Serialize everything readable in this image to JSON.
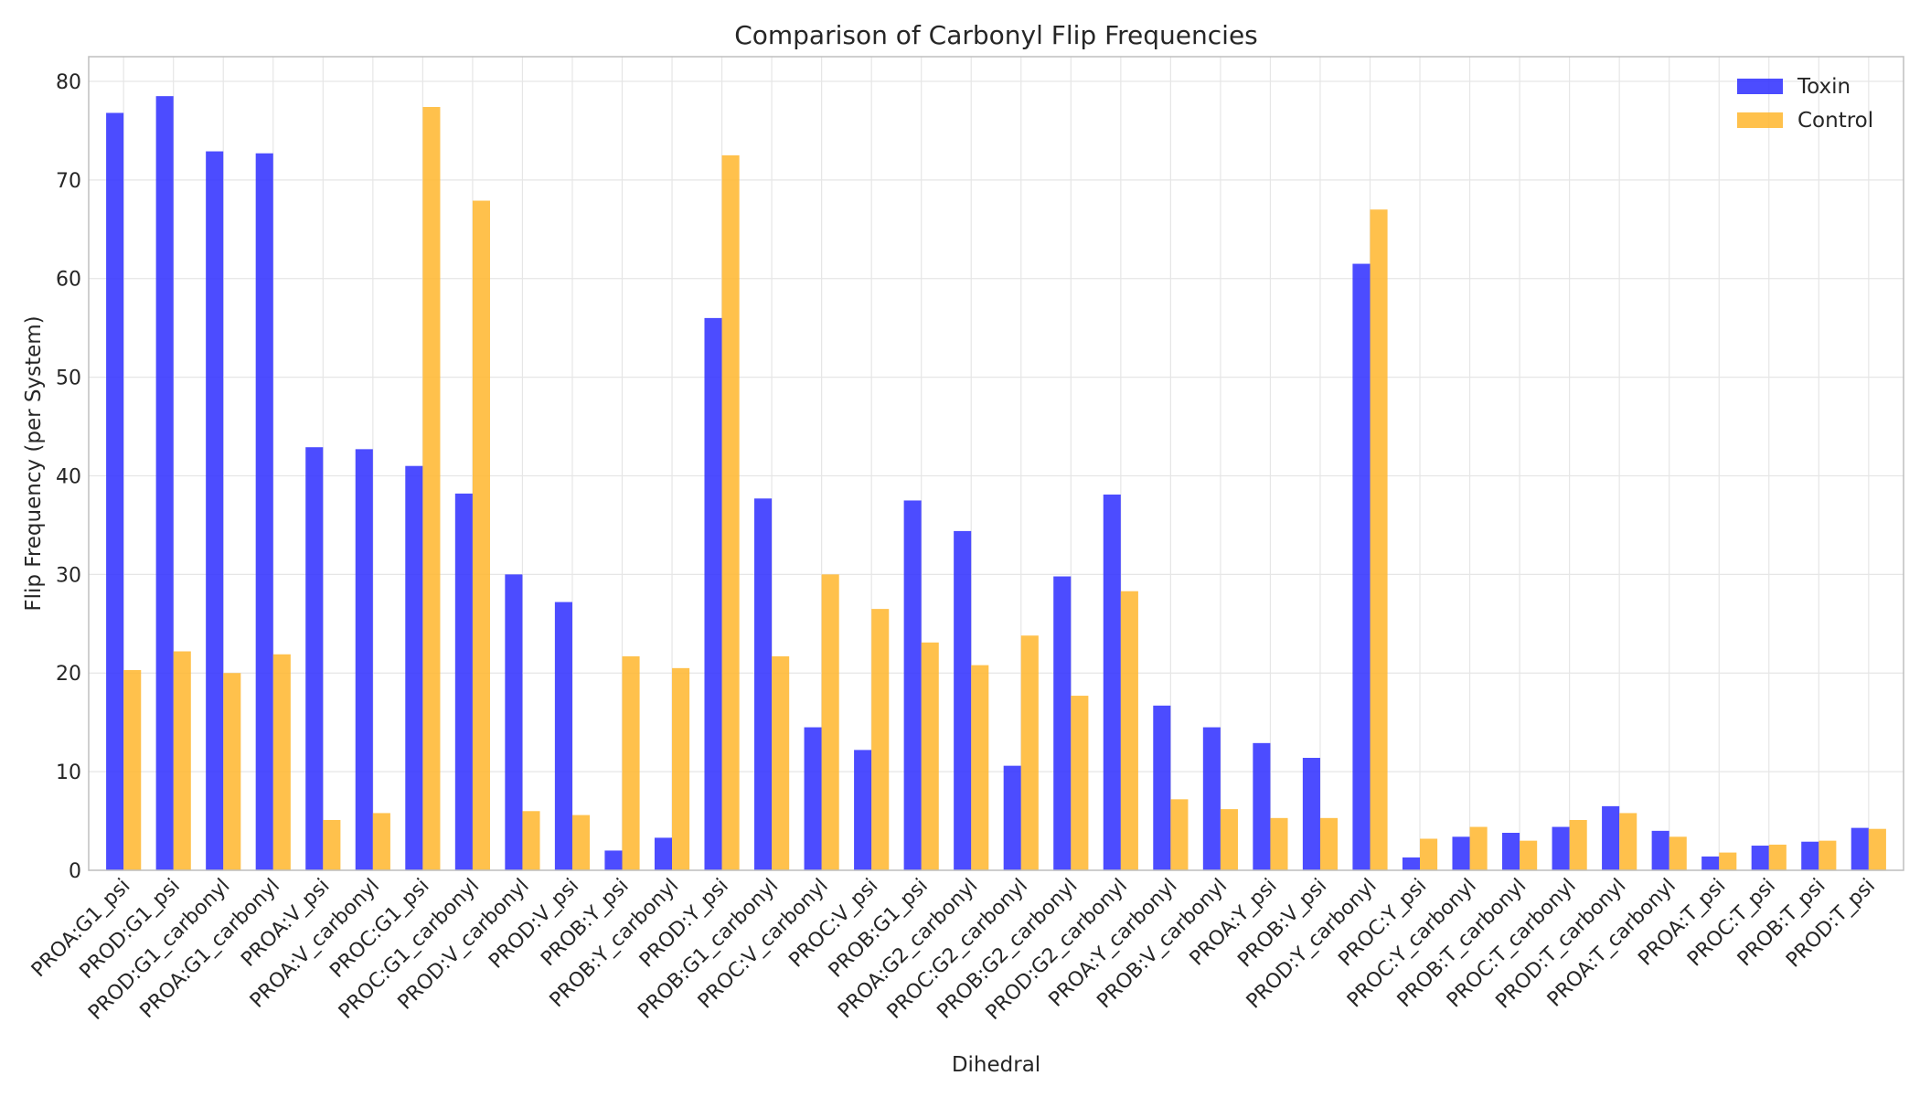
{
  "chart_data": {
    "type": "bar",
    "title": "Comparison of Carbonyl Flip Frequencies",
    "xlabel": "Dihedral",
    "ylabel": "Flip Frequency (per System)",
    "ylim": [
      0,
      82.5
    ],
    "yticks": [
      0,
      10,
      20,
      30,
      40,
      50,
      60,
      70,
      80
    ],
    "grid": true,
    "legend_position": "top-right",
    "categories": [
      "PROA:G1_psi",
      "PROD:G1_psi",
      "PROD:G1_carbonyl",
      "PROA:G1_carbonyl",
      "PROA:V_psi",
      "PROA:V_carbonyl",
      "PROC:G1_psi",
      "PROC:G1_carbonyl",
      "PROD:V_carbonyl",
      "PROD:V_psi",
      "PROB:Y_psi",
      "PROB:Y_carbonyl",
      "PROD:Y_psi",
      "PROB:G1_carbonyl",
      "PROC:V_carbonyl",
      "PROC:V_psi",
      "PROB:G1_psi",
      "PROA:G2_carbonyl",
      "PROC:G2_carbonyl",
      "PROB:G2_carbonyl",
      "PROD:G2_carbonyl",
      "PROA:Y_carbonyl",
      "PROB:V_carbonyl",
      "PROA:Y_psi",
      "PROB:V_psi",
      "PROD:Y_carbonyl",
      "PROC:Y_psi",
      "PROC:Y_carbonyl",
      "PROB:T_carbonyl",
      "PROC:T_carbonyl",
      "PROD:T_carbonyl",
      "PROA:T_carbonyl",
      "PROA:T_psi",
      "PROC:T_psi",
      "PROB:T_psi",
      "PROD:T_psi"
    ],
    "series": [
      {
        "name": "Toxin",
        "color": "#3333ff",
        "values": [
          76.8,
          78.5,
          72.9,
          72.7,
          42.9,
          42.7,
          41.0,
          38.2,
          30.0,
          27.2,
          2.0,
          3.3,
          56.0,
          37.7,
          14.5,
          12.2,
          37.5,
          34.4,
          10.6,
          29.8,
          38.1,
          16.7,
          14.5,
          12.9,
          11.4,
          61.5,
          1.3,
          3.4,
          3.8,
          4.4,
          6.5,
          4.0,
          1.4,
          2.5,
          2.9,
          4.3
        ]
      },
      {
        "name": "Control",
        "color": "#ffb833",
        "values": [
          20.3,
          22.2,
          20.0,
          21.9,
          5.1,
          5.8,
          77.4,
          67.9,
          6.0,
          5.6,
          21.7,
          20.5,
          72.5,
          21.7,
          30.0,
          26.5,
          23.1,
          20.8,
          23.8,
          17.7,
          28.3,
          7.2,
          6.2,
          5.3,
          5.3,
          67.0,
          3.2,
          4.4,
          3.0,
          5.1,
          5.8,
          3.4,
          1.8,
          2.6,
          3.0,
          4.2
        ]
      }
    ]
  }
}
